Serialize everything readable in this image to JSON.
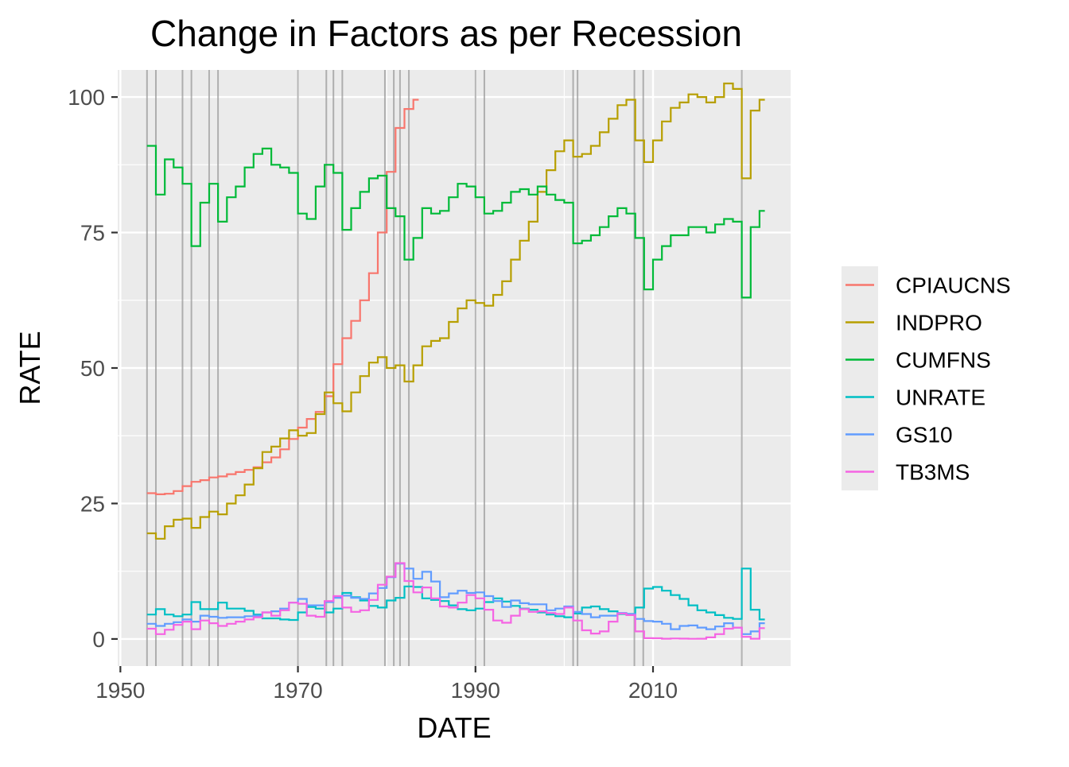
{
  "chart_data": {
    "type": "line",
    "title": "Change in Factors as per Recession",
    "xlabel": "DATE",
    "ylabel": "RATE",
    "xlim": [
      1949.7,
      2025.5
    ],
    "ylim": [
      -5,
      105
    ],
    "x_ticks": [
      1950,
      1970,
      1990,
      2010
    ],
    "x_tick_labels": [
      "1950",
      "1970",
      "1990",
      "2010"
    ],
    "y_ticks": [
      0,
      25,
      50,
      75,
      100
    ],
    "y_tick_labels": [
      "0",
      "25",
      "50",
      "75",
      "100"
    ],
    "grid": true,
    "legend_position": "right",
    "recession_lines": [
      1953.0,
      1954.0,
      1957.0,
      1958.0,
      1960.0,
      1961.0,
      1970.0,
      1973.2,
      1974.0,
      1975.0,
      1979.8,
      1980.8,
      1981.5,
      1982.5,
      1990.0,
      1991.0,
      2001.0,
      2001.5,
      2007.9,
      2008.9,
      2020.0
    ],
    "series": [
      {
        "name": "CPIAUCNS",
        "color": "#F8766D",
        "x": [
          1953,
          1954,
          1955,
          1956,
          1957,
          1958,
          1959,
          1960,
          1961,
          1962,
          1963,
          1964,
          1965,
          1966,
          1967,
          1968,
          1969,
          1970,
          1971,
          1972,
          1973,
          1974,
          1975,
          1976,
          1977,
          1978,
          1979,
          1980,
          1981,
          1982,
          1983
        ],
        "values": [
          26.9,
          26.7,
          26.8,
          27.3,
          28.2,
          29.0,
          29.3,
          29.8,
          30.0,
          30.4,
          30.8,
          31.2,
          31.7,
          32.6,
          33.5,
          35.0,
          36.9,
          39.0,
          40.6,
          41.9,
          44.8,
          50.7,
          55.5,
          58.7,
          62.5,
          67.5,
          75.0,
          86.2,
          94.3,
          97.8,
          99.5
        ]
      },
      {
        "name": "INDPRO",
        "color": "#B79F00",
        "x": [
          1953,
          1954,
          1955,
          1956,
          1957,
          1958,
          1959,
          1960,
          1961,
          1962,
          1963,
          1964,
          1965,
          1966,
          1967,
          1968,
          1969,
          1970,
          1971,
          1972,
          1973,
          1974,
          1975,
          1976,
          1977,
          1978,
          1979,
          1980,
          1981,
          1982,
          1983,
          1984,
          1985,
          1986,
          1987,
          1988,
          1989,
          1990,
          1991,
          1992,
          1993,
          1994,
          1995,
          1996,
          1997,
          1998,
          1999,
          2000,
          2001,
          2002,
          2003,
          2004,
          2005,
          2006,
          2007,
          2008,
          2009,
          2010,
          2011,
          2012,
          2013,
          2014,
          2015,
          2016,
          2017,
          2018,
          2019,
          2020,
          2021,
          2022
        ],
        "values": [
          19.5,
          18.5,
          20.8,
          22.0,
          22.2,
          20.5,
          22.5,
          23.5,
          23.0,
          25.0,
          26.5,
          28.5,
          31.5,
          34.5,
          35.5,
          37.0,
          38.5,
          37.5,
          38.0,
          41.5,
          45.5,
          43.5,
          42.0,
          45.5,
          48.5,
          51.0,
          52.0,
          50.0,
          50.5,
          47.5,
          50.5,
          54.0,
          55.0,
          55.5,
          58.5,
          61.0,
          62.5,
          62.0,
          61.5,
          63.5,
          66.0,
          70.0,
          73.5,
          77.0,
          82.5,
          86.5,
          90.0,
          92.0,
          89.0,
          89.5,
          91.0,
          93.5,
          96.0,
          98.5,
          99.5,
          92.0,
          88.0,
          92.0,
          95.5,
          98.0,
          99.0,
          100.5,
          100.0,
          99.0,
          100.0,
          102.5,
          101.5,
          85.0,
          97.5,
          99.5
        ]
      },
      {
        "name": "CUMFNS",
        "color": "#00BA38",
        "x": [
          1953,
          1954,
          1955,
          1956,
          1957,
          1958,
          1959,
          1960,
          1961,
          1962,
          1963,
          1964,
          1965,
          1966,
          1967,
          1968,
          1969,
          1970,
          1971,
          1972,
          1973,
          1974,
          1975,
          1976,
          1977,
          1978,
          1979,
          1980,
          1981,
          1982,
          1983,
          1984,
          1985,
          1986,
          1987,
          1988,
          1989,
          1990,
          1991,
          1992,
          1993,
          1994,
          1995,
          1996,
          1997,
          1998,
          1999,
          2000,
          2001,
          2002,
          2003,
          2004,
          2005,
          2006,
          2007,
          2008,
          2009,
          2010,
          2011,
          2012,
          2013,
          2014,
          2015,
          2016,
          2017,
          2018,
          2019,
          2020,
          2021,
          2022
        ],
        "values": [
          91.0,
          82.0,
          88.5,
          87.0,
          84.0,
          72.5,
          80.5,
          84.0,
          77.0,
          81.5,
          83.5,
          87.0,
          89.5,
          90.5,
          87.5,
          87.0,
          86.0,
          78.5,
          77.5,
          83.5,
          87.5,
          86.0,
          75.5,
          79.5,
          82.5,
          85.0,
          85.5,
          79.5,
          78.0,
          70.0,
          74.0,
          79.5,
          78.5,
          79.0,
          81.5,
          84.0,
          83.5,
          81.5,
          78.5,
          79.0,
          80.5,
          82.5,
          83.0,
          82.0,
          83.5,
          82.0,
          81.0,
          80.5,
          73.0,
          73.5,
          74.5,
          76.0,
          78.0,
          79.5,
          78.5,
          74.0,
          64.5,
          70.0,
          72.5,
          74.5,
          74.5,
          76.0,
          76.0,
          75.0,
          76.5,
          77.5,
          77.0,
          63.0,
          76.0,
          79.0
        ]
      },
      {
        "name": "UNRATE",
        "color": "#00BFC4",
        "x": [
          1953,
          1954,
          1955,
          1956,
          1957,
          1958,
          1959,
          1960,
          1961,
          1962,
          1963,
          1964,
          1965,
          1966,
          1967,
          1968,
          1969,
          1970,
          1971,
          1972,
          1973,
          1974,
          1975,
          1976,
          1977,
          1978,
          1979,
          1980,
          1981,
          1982,
          1983,
          1984,
          1985,
          1986,
          1987,
          1988,
          1989,
          1990,
          1991,
          1992,
          1993,
          1994,
          1995,
          1996,
          1997,
          1998,
          1999,
          2000,
          2001,
          2002,
          2003,
          2004,
          2005,
          2006,
          2007,
          2008,
          2009,
          2010,
          2011,
          2012,
          2013,
          2014,
          2015,
          2016,
          2017,
          2018,
          2019,
          2020,
          2021,
          2022
        ],
        "values": [
          4.5,
          5.5,
          4.5,
          4.2,
          4.5,
          6.8,
          5.5,
          5.5,
          6.7,
          5.6,
          5.6,
          5.2,
          4.5,
          3.8,
          3.8,
          3.6,
          3.5,
          4.9,
          5.9,
          5.6,
          4.9,
          5.6,
          8.5,
          7.7,
          7.1,
          6.1,
          5.8,
          7.1,
          7.6,
          9.7,
          9.6,
          7.5,
          7.2,
          7.0,
          6.2,
          5.5,
          5.3,
          5.6,
          6.8,
          7.5,
          6.9,
          6.1,
          5.6,
          5.4,
          4.9,
          4.5,
          4.2,
          4.0,
          4.7,
          5.8,
          6.0,
          5.5,
          5.1,
          4.6,
          4.6,
          5.8,
          9.3,
          9.6,
          8.9,
          8.1,
          7.4,
          6.2,
          5.3,
          4.9,
          4.4,
          3.9,
          3.7,
          13.0,
          5.4,
          3.6
        ]
      },
      {
        "name": "GS10",
        "color": "#619CFF",
        "x": [
          1953,
          1954,
          1955,
          1956,
          1957,
          1958,
          1959,
          1960,
          1961,
          1962,
          1963,
          1964,
          1965,
          1966,
          1967,
          1968,
          1969,
          1970,
          1971,
          1972,
          1973,
          1974,
          1975,
          1976,
          1977,
          1978,
          1979,
          1980,
          1981,
          1982,
          1983,
          1984,
          1985,
          1986,
          1987,
          1988,
          1989,
          1990,
          1991,
          1992,
          1993,
          1994,
          1995,
          1996,
          1997,
          1998,
          1999,
          2000,
          2001,
          2002,
          2003,
          2004,
          2005,
          2006,
          2007,
          2008,
          2009,
          2010,
          2011,
          2012,
          2013,
          2014,
          2015,
          2016,
          2017,
          2018,
          2019,
          2020,
          2021,
          2022
        ],
        "values": [
          2.8,
          2.4,
          2.8,
          3.1,
          3.6,
          3.2,
          4.3,
          4.1,
          3.9,
          4.0,
          4.0,
          4.2,
          4.3,
          4.9,
          5.1,
          5.6,
          6.7,
          7.4,
          6.2,
          6.2,
          6.8,
          7.6,
          8.0,
          7.6,
          7.4,
          8.4,
          9.4,
          11.4,
          13.9,
          13.0,
          11.1,
          12.4,
          10.6,
          7.7,
          8.4,
          8.9,
          8.5,
          8.6,
          7.9,
          7.0,
          5.9,
          7.1,
          6.6,
          6.4,
          6.4,
          5.3,
          5.6,
          6.0,
          5.0,
          4.6,
          4.0,
          4.3,
          4.3,
          4.8,
          4.6,
          3.7,
          3.3,
          3.2,
          2.8,
          1.8,
          2.4,
          2.5,
          2.1,
          1.8,
          2.3,
          2.9,
          2.1,
          0.9,
          1.4,
          2.9
        ]
      },
      {
        "name": "TB3MS",
        "color": "#F564E3",
        "x": [
          1953,
          1954,
          1955,
          1956,
          1957,
          1958,
          1959,
          1960,
          1961,
          1962,
          1963,
          1964,
          1965,
          1966,
          1967,
          1968,
          1969,
          1970,
          1971,
          1972,
          1973,
          1974,
          1975,
          1976,
          1977,
          1978,
          1979,
          1980,
          1981,
          1982,
          1983,
          1984,
          1985,
          1986,
          1987,
          1988,
          1989,
          1990,
          1991,
          1992,
          1993,
          1994,
          1995,
          1996,
          1997,
          1998,
          1999,
          2000,
          2001,
          2002,
          2003,
          2004,
          2005,
          2006,
          2007,
          2008,
          2009,
          2010,
          2011,
          2012,
          2013,
          2014,
          2015,
          2016,
          2017,
          2018,
          2019,
          2020,
          2021,
          2022
        ],
        "values": [
          1.9,
          0.9,
          1.7,
          2.6,
          3.2,
          1.8,
          3.4,
          2.9,
          2.4,
          2.8,
          3.2,
          3.6,
          4.0,
          4.9,
          4.3,
          5.3,
          6.7,
          6.5,
          4.3,
          4.1,
          7.0,
          7.9,
          5.8,
          5.0,
          5.3,
          7.2,
          10.0,
          11.5,
          14.0,
          10.7,
          8.6,
          9.5,
          7.5,
          6.0,
          5.8,
          6.7,
          8.1,
          7.5,
          5.4,
          3.4,
          3.0,
          4.3,
          5.5,
          5.0,
          5.1,
          4.8,
          4.6,
          5.8,
          3.4,
          1.6,
          1.0,
          1.4,
          3.2,
          4.7,
          4.4,
          1.4,
          0.15,
          0.14,
          0.05,
          0.09,
          0.06,
          0.03,
          0.05,
          0.3,
          0.9,
          1.9,
          2.1,
          0.4,
          0.05,
          2.0
        ]
      }
    ]
  }
}
